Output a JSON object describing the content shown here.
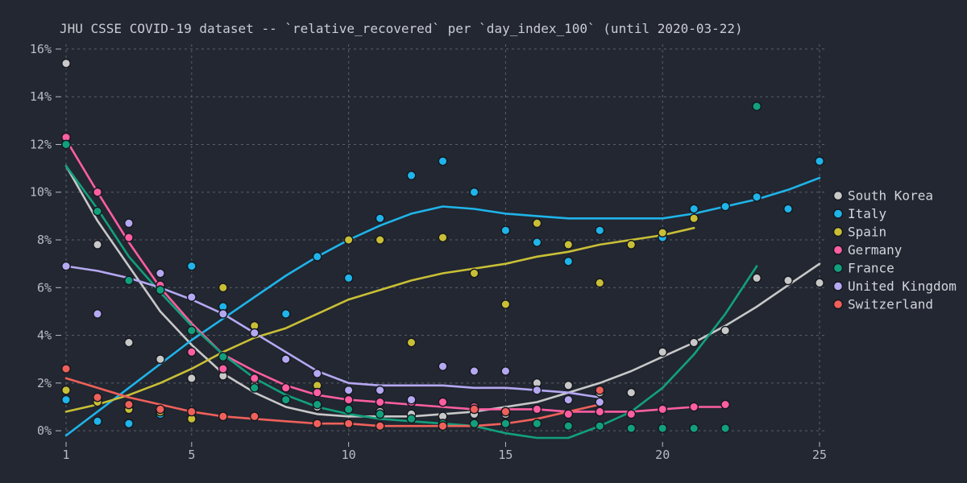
{
  "chart_data": {
    "type": "scatter",
    "title": "JHU CSSE COVID-19 dataset -- `relative_recovered` per `day_index_100` (until 2020-03-22)",
    "xlabel": "",
    "ylabel": "",
    "xlim": [
      1,
      25
    ],
    "ylim": [
      -0.3,
      16.2
    ],
    "x_ticks": [
      1,
      5,
      10,
      15,
      20,
      25
    ],
    "y_ticks": [
      0,
      2,
      4,
      6,
      8,
      10,
      12,
      14,
      16
    ],
    "y_tick_labels": [
      "0%",
      "2%",
      "4%",
      "6%",
      "8%",
      "10%",
      "12%",
      "14%",
      "16%"
    ],
    "grid": true,
    "legend_position": "right",
    "series": [
      {
        "name": "South Korea",
        "color": "#c8c8c8",
        "points": [
          [
            1,
            15.4
          ],
          [
            2,
            7.8
          ],
          [
            3,
            3.7
          ],
          [
            4,
            3.0
          ],
          [
            5,
            2.2
          ],
          [
            6,
            2.3
          ],
          [
            7,
            1.9
          ],
          [
            8,
            1.3
          ],
          [
            9,
            1.0
          ],
          [
            10,
            0.9
          ],
          [
            11,
            0.8
          ],
          [
            12,
            0.7
          ],
          [
            13,
            0.6
          ],
          [
            14,
            0.7
          ],
          [
            15,
            0.7
          ],
          [
            16,
            2.0
          ],
          [
            17,
            1.9
          ],
          [
            18,
            1.6
          ],
          [
            19,
            1.6
          ],
          [
            20,
            3.3
          ],
          [
            21,
            3.7
          ],
          [
            22,
            4.2
          ],
          [
            23,
            6.4
          ],
          [
            24,
            6.3
          ],
          [
            25,
            6.2
          ]
        ],
        "trend": [
          [
            1,
            11.1
          ],
          [
            2,
            8.8
          ],
          [
            3,
            6.9
          ],
          [
            4,
            5.0
          ],
          [
            5,
            3.6
          ],
          [
            6,
            2.4
          ],
          [
            7,
            1.6
          ],
          [
            8,
            1.0
          ],
          [
            9,
            0.7
          ],
          [
            10,
            0.6
          ],
          [
            11,
            0.6
          ],
          [
            12,
            0.6
          ],
          [
            13,
            0.7
          ],
          [
            14,
            0.8
          ],
          [
            15,
            1.0
          ],
          [
            16,
            1.2
          ],
          [
            17,
            1.6
          ],
          [
            18,
            2.0
          ],
          [
            19,
            2.5
          ],
          [
            20,
            3.1
          ],
          [
            21,
            3.7
          ],
          [
            22,
            4.4
          ],
          [
            23,
            5.2
          ],
          [
            24,
            6.1
          ],
          [
            25,
            7.0
          ]
        ]
      },
      {
        "name": "Italy",
        "color": "#1fb4ea",
        "points": [
          [
            1,
            1.3
          ],
          [
            2,
            0.4
          ],
          [
            3,
            0.3
          ],
          [
            4,
            0.7
          ],
          [
            5,
            6.9
          ],
          [
            6,
            5.2
          ],
          [
            7,
            4.1
          ],
          [
            8,
            4.9
          ],
          [
            9,
            7.3
          ],
          [
            10,
            6.4
          ],
          [
            11,
            8.9
          ],
          [
            12,
            10.7
          ],
          [
            13,
            11.3
          ],
          [
            14,
            10.0
          ],
          [
            15,
            8.4
          ],
          [
            16,
            7.9
          ],
          [
            17,
            7.1
          ],
          [
            18,
            8.4
          ],
          [
            20,
            8.1
          ],
          [
            21,
            9.3
          ],
          [
            22,
            9.4
          ],
          [
            23,
            9.8
          ],
          [
            24,
            9.3
          ],
          [
            25,
            11.3
          ]
        ],
        "trend": [
          [
            1,
            -0.2
          ],
          [
            2,
            0.8
          ],
          [
            3,
            1.8
          ],
          [
            4,
            2.8
          ],
          [
            5,
            3.8
          ],
          [
            6,
            4.7
          ],
          [
            7,
            5.6
          ],
          [
            8,
            6.5
          ],
          [
            9,
            7.3
          ],
          [
            10,
            8.0
          ],
          [
            11,
            8.6
          ],
          [
            12,
            9.1
          ],
          [
            13,
            9.4
          ],
          [
            14,
            9.3
          ],
          [
            15,
            9.1
          ],
          [
            16,
            9.0
          ],
          [
            17,
            8.9
          ],
          [
            18,
            8.9
          ],
          [
            19,
            8.9
          ],
          [
            20,
            8.9
          ],
          [
            21,
            9.1
          ],
          [
            22,
            9.4
          ],
          [
            23,
            9.7
          ],
          [
            24,
            10.1
          ],
          [
            25,
            10.6
          ]
        ]
      },
      {
        "name": "Spain",
        "color": "#c9bf36",
        "points": [
          [
            1,
            1.7
          ],
          [
            2,
            1.2
          ],
          [
            3,
            0.9
          ],
          [
            4,
            0.8
          ],
          [
            5,
            0.5
          ],
          [
            6,
            6.0
          ],
          [
            7,
            4.4
          ],
          [
            8,
            3.0
          ],
          [
            9,
            1.9
          ],
          [
            10,
            8.0
          ],
          [
            11,
            8.0
          ],
          [
            12,
            3.7
          ],
          [
            13,
            8.1
          ],
          [
            14,
            6.6
          ],
          [
            15,
            5.3
          ],
          [
            16,
            8.7
          ],
          [
            17,
            7.8
          ],
          [
            18,
            6.2
          ],
          [
            19,
            7.8
          ],
          [
            20,
            8.3
          ],
          [
            21,
            8.9
          ]
        ],
        "trend": [
          [
            1,
            0.8
          ],
          [
            2,
            1.1
          ],
          [
            3,
            1.5
          ],
          [
            4,
            2.0
          ],
          [
            5,
            2.6
          ],
          [
            6,
            3.3
          ],
          [
            7,
            3.9
          ],
          [
            8,
            4.3
          ],
          [
            9,
            4.9
          ],
          [
            10,
            5.5
          ],
          [
            11,
            5.9
          ],
          [
            12,
            6.3
          ],
          [
            13,
            6.6
          ],
          [
            14,
            6.8
          ],
          [
            15,
            7.0
          ],
          [
            16,
            7.3
          ],
          [
            17,
            7.5
          ],
          [
            18,
            7.8
          ],
          [
            19,
            8.0
          ],
          [
            20,
            8.2
          ],
          [
            21,
            8.5
          ]
        ]
      },
      {
        "name": "Germany",
        "color": "#ff5ea2",
        "points": [
          [
            1,
            12.3
          ],
          [
            2,
            10.0
          ],
          [
            3,
            8.1
          ],
          [
            4,
            6.1
          ],
          [
            5,
            3.3
          ],
          [
            6,
            2.6
          ],
          [
            7,
            2.2
          ],
          [
            8,
            1.8
          ],
          [
            9,
            1.6
          ],
          [
            10,
            1.3
          ],
          [
            11,
            1.2
          ],
          [
            12,
            1.2
          ],
          [
            13,
            1.2
          ],
          [
            14,
            1.0
          ],
          [
            15,
            0.8
          ],
          [
            16,
            0.9
          ],
          [
            17,
            0.7
          ],
          [
            18,
            0.8
          ],
          [
            19,
            0.7
          ],
          [
            20,
            0.9
          ],
          [
            21,
            1.0
          ],
          [
            22,
            1.1
          ]
        ],
        "trend": [
          [
            1,
            12.2
          ],
          [
            2,
            10.0
          ],
          [
            3,
            7.9
          ],
          [
            4,
            6.0
          ],
          [
            5,
            4.5
          ],
          [
            6,
            3.2
          ],
          [
            7,
            2.5
          ],
          [
            8,
            1.9
          ],
          [
            9,
            1.5
          ],
          [
            10,
            1.3
          ],
          [
            11,
            1.2
          ],
          [
            12,
            1.1
          ],
          [
            13,
            1.0
          ],
          [
            14,
            0.9
          ],
          [
            15,
            0.9
          ],
          [
            16,
            0.9
          ],
          [
            17,
            0.8
          ],
          [
            18,
            0.8
          ],
          [
            19,
            0.8
          ],
          [
            20,
            0.9
          ],
          [
            21,
            1.0
          ],
          [
            22,
            1.0
          ]
        ]
      },
      {
        "name": "France",
        "color": "#12a07c",
        "points": [
          [
            1,
            12.0
          ],
          [
            2,
            9.2
          ],
          [
            3,
            6.3
          ],
          [
            4,
            5.9
          ],
          [
            5,
            4.2
          ],
          [
            6,
            3.1
          ],
          [
            7,
            1.8
          ],
          [
            8,
            1.3
          ],
          [
            9,
            1.1
          ],
          [
            10,
            0.9
          ],
          [
            11,
            0.7
          ],
          [
            12,
            0.5
          ],
          [
            13,
            0.3
          ],
          [
            14,
            0.3
          ],
          [
            15,
            0.3
          ],
          [
            16,
            0.3
          ],
          [
            17,
            0.2
          ],
          [
            18,
            0.2
          ],
          [
            19,
            0.1
          ],
          [
            20,
            0.1
          ],
          [
            21,
            0.1
          ],
          [
            22,
            0.1
          ],
          [
            23,
            13.6
          ]
        ],
        "trend": [
          [
            1,
            11.1
          ],
          [
            2,
            9.3
          ],
          [
            3,
            7.3
          ],
          [
            4,
            5.8
          ],
          [
            5,
            4.4
          ],
          [
            6,
            3.2
          ],
          [
            7,
            2.2
          ],
          [
            8,
            1.5
          ],
          [
            9,
            1.0
          ],
          [
            10,
            0.7
          ],
          [
            11,
            0.5
          ],
          [
            12,
            0.4
          ],
          [
            13,
            0.3
          ],
          [
            14,
            0.2
          ],
          [
            15,
            -0.1
          ],
          [
            16,
            -0.3
          ],
          [
            17,
            -0.3
          ],
          [
            18,
            0.2
          ],
          [
            19,
            0.8
          ],
          [
            20,
            1.8
          ],
          [
            21,
            3.2
          ],
          [
            22,
            4.9
          ],
          [
            23,
            6.9
          ]
        ]
      },
      {
        "name": "United Kingdom",
        "color": "#b5a8f2",
        "points": [
          [
            1,
            6.9
          ],
          [
            2,
            4.9
          ],
          [
            3,
            8.7
          ],
          [
            4,
            6.6
          ],
          [
            5,
            5.6
          ],
          [
            6,
            4.9
          ],
          [
            7,
            4.1
          ],
          [
            8,
            3.0
          ],
          [
            9,
            2.4
          ],
          [
            10,
            1.7
          ],
          [
            11,
            1.7
          ],
          [
            12,
            1.3
          ],
          [
            13,
            2.7
          ],
          [
            14,
            2.5
          ],
          [
            15,
            2.5
          ],
          [
            16,
            1.7
          ],
          [
            17,
            1.3
          ],
          [
            18,
            1.2
          ]
        ],
        "trend": [
          [
            1,
            6.9
          ],
          [
            2,
            6.7
          ],
          [
            3,
            6.4
          ],
          [
            4,
            6.0
          ],
          [
            5,
            5.5
          ],
          [
            6,
            4.9
          ],
          [
            7,
            4.1
          ],
          [
            8,
            3.3
          ],
          [
            9,
            2.5
          ],
          [
            10,
            2.0
          ],
          [
            11,
            1.9
          ],
          [
            12,
            1.9
          ],
          [
            13,
            1.9
          ],
          [
            14,
            1.8
          ],
          [
            15,
            1.8
          ],
          [
            16,
            1.7
          ],
          [
            17,
            1.6
          ],
          [
            18,
            1.4
          ]
        ]
      },
      {
        "name": "Switzerland",
        "color": "#f0605a",
        "points": [
          [
            1,
            2.6
          ],
          [
            2,
            1.4
          ],
          [
            3,
            1.1
          ],
          [
            4,
            0.9
          ],
          [
            5,
            0.8
          ],
          [
            6,
            0.6
          ],
          [
            7,
            0.6
          ],
          [
            9,
            0.3
          ],
          [
            10,
            0.3
          ],
          [
            11,
            0.2
          ],
          [
            13,
            0.2
          ],
          [
            14,
            0.9
          ],
          [
            15,
            0.8
          ],
          [
            18,
            1.7
          ]
        ],
        "trend": [
          [
            1,
            2.2
          ],
          [
            2,
            1.8
          ],
          [
            3,
            1.4
          ],
          [
            4,
            1.1
          ],
          [
            5,
            0.8
          ],
          [
            6,
            0.6
          ],
          [
            7,
            0.5
          ],
          [
            8,
            0.4
          ],
          [
            9,
            0.3
          ],
          [
            10,
            0.3
          ],
          [
            11,
            0.2
          ],
          [
            12,
            0.2
          ],
          [
            13,
            0.2
          ],
          [
            14,
            0.2
          ],
          [
            15,
            0.3
          ],
          [
            16,
            0.5
          ],
          [
            17,
            0.8
          ],
          [
            18,
            1.1
          ]
        ]
      }
    ]
  }
}
